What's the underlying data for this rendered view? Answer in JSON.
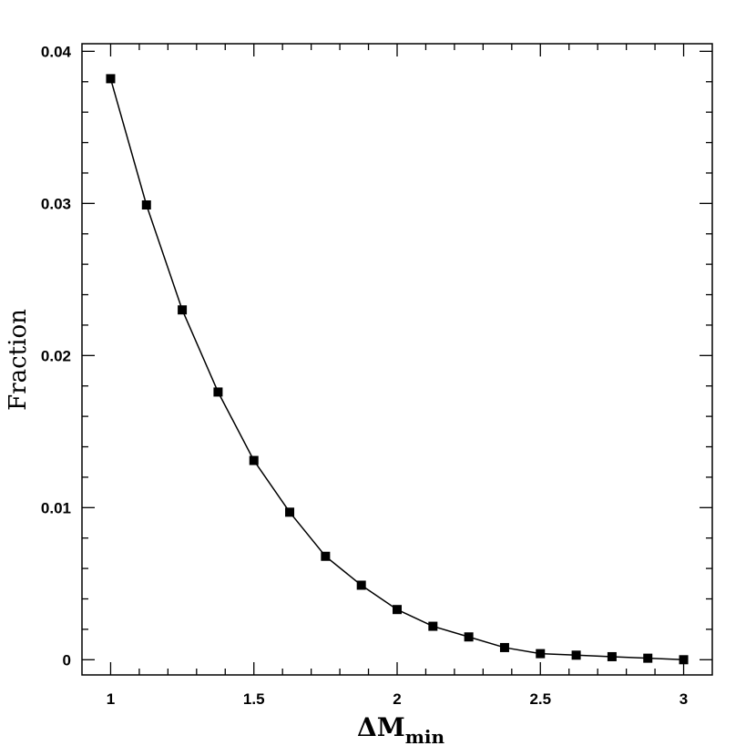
{
  "chart_data": {
    "type": "line",
    "title": "",
    "xlabel": {
      "main": "ΔM",
      "sub": "min"
    },
    "ylabel": "Fraction",
    "xlim": [
      0.9,
      3.1
    ],
    "ylim": [
      -0.001,
      0.0405
    ],
    "x_ticks": [
      1,
      1.5,
      2,
      2.5,
      3
    ],
    "x_tick_labels": [
      "1",
      "1.5",
      "2",
      "2.5",
      "3"
    ],
    "y_ticks": [
      0,
      0.01,
      0.02,
      0.03,
      0.04
    ],
    "y_tick_labels": [
      "0",
      "0.01",
      "0.02",
      "0.03",
      "0.04"
    ],
    "grid": false,
    "legend": "none",
    "marker": "square",
    "color": "#000000",
    "series": [
      {
        "x": [
          1.0,
          1.125,
          1.25,
          1.375,
          1.5,
          1.625,
          1.75,
          1.875,
          2.0,
          2.125,
          2.25,
          2.375,
          2.5,
          2.625,
          2.75,
          2.875,
          3.0
        ],
        "y": [
          0.0382,
          0.0299,
          0.023,
          0.0176,
          0.0131,
          0.0097,
          0.0068,
          0.0049,
          0.0033,
          0.0022,
          0.0015,
          0.0008,
          0.0004,
          0.0003,
          0.0002,
          0.0001,
          0.0
        ]
      }
    ]
  }
}
